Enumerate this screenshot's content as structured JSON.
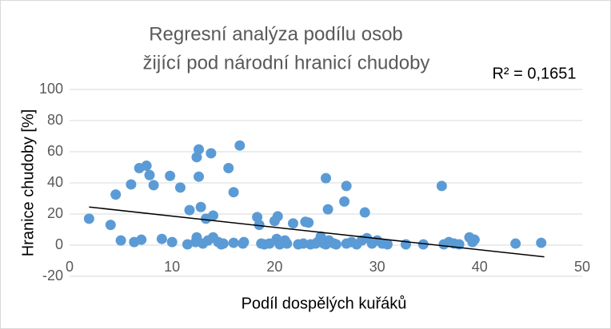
{
  "chart_data": {
    "type": "scatter",
    "title": [
      "Regresní analýza podílu osob",
      "žijící pod národní hranicí chudoby"
    ],
    "annotation": "R² = 0,1651",
    "x_label": "Podíl dospělých kuřáků",
    "y_label": "Hranice chudoby [%]",
    "color": "#5b9bd5",
    "grid": true,
    "xlim": [
      0,
      50
    ],
    "xticks": [
      0,
      10,
      20,
      30,
      40,
      50
    ],
    "ylim": [
      -20,
      100
    ],
    "yticks": [
      -20,
      0,
      20,
      40,
      60,
      80,
      100
    ],
    "x": [
      1.9,
      4,
      4.5,
      5,
      6,
      6.3,
      6.8,
      7,
      7.5,
      7.8,
      8.2,
      9,
      9.8,
      10,
      10.8,
      11.5,
      11.7,
      12.3,
      12.4,
      12.4,
      12.6,
      12.6,
      12.8,
      13,
      13.3,
      13.5,
      13.8,
      14,
      14,
      14.5,
      14.8,
      15,
      15.5,
      16,
      16,
      16.6,
      16.9,
      17,
      18.3,
      18.5,
      18.7,
      19,
      19.5,
      20,
      20.2,
      20.3,
      20.5,
      20.8,
      21,
      21.2,
      21.8,
      22.3,
      22.8,
      23,
      23.3,
      23.5,
      24,
      24.2,
      24.5,
      24.8,
      25,
      25,
      25.2,
      25.3,
      25.8,
      26,
      26.8,
      27,
      27,
      27.5,
      28,
      28.5,
      28.8,
      29,
      29.5,
      30,
      30.5,
      31,
      32.8,
      34.5,
      36.3,
      36.5,
      37,
      37.5,
      38,
      39,
      39.3,
      39.5,
      43.5,
      46
    ],
    "y": [
      17,
      13,
      32.5,
      3,
      39,
      2,
      49.5,
      3.5,
      51,
      45,
      38.5,
      4,
      44.5,
      2,
      37,
      0.5,
      22.5,
      2,
      5,
      56.5,
      61.5,
      44,
      24.5,
      1,
      17,
      3,
      59,
      19,
      5,
      2,
      0.5,
      1,
      49.5,
      1.5,
      34,
      64,
      1,
      2,
      18,
      13,
      1,
      0.5,
      1,
      15.5,
      4,
      18.5,
      0.5,
      2,
      3,
      1,
      14,
      0.5,
      1,
      15,
      14.5,
      0.5,
      1,
      2,
      5.5,
      1,
      43,
      0.5,
      23,
      3,
      1,
      0.5,
      28,
      38,
      1,
      2,
      0.5,
      3,
      21,
      4.5,
      1,
      3,
      1,
      0.5,
      0.5,
      0.5,
      38,
      0.5,
      2,
      1,
      0.5,
      5,
      2,
      3.5,
      1,
      1.5
    ],
    "trendline": {
      "x": [
        1.9,
        46.3
      ],
      "y": [
        24.5,
        -7.5
      ],
      "color": "#000000"
    }
  }
}
